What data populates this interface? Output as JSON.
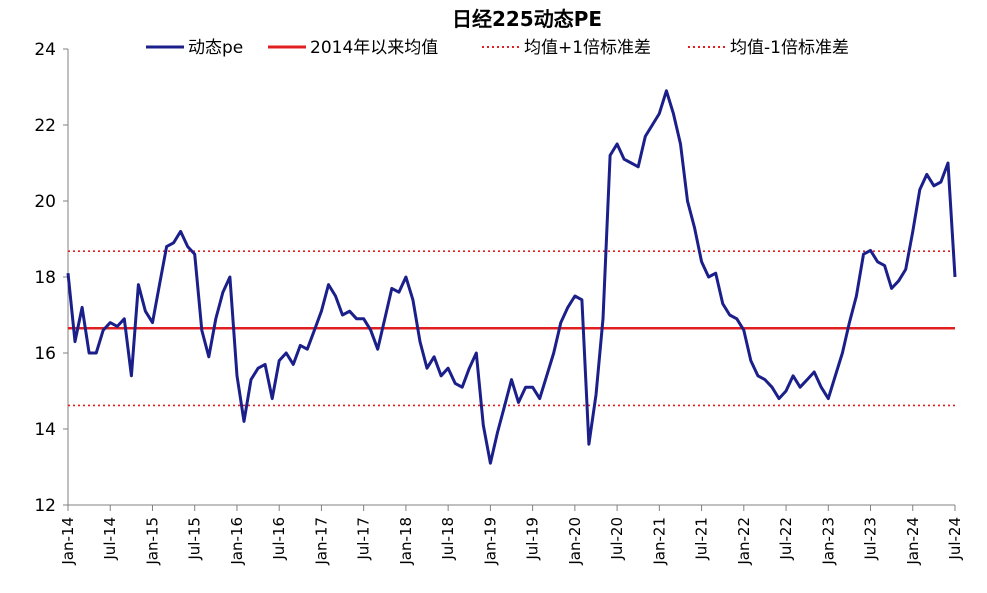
{
  "chart_data": {
    "type": "line",
    "title": "日经225动态PE",
    "xlabel": "",
    "ylabel": "",
    "ylim": [
      12,
      24
    ],
    "yticks": [
      12,
      14,
      16,
      18,
      20,
      22,
      24
    ],
    "xlim": [
      "2014-01",
      "2024-07"
    ],
    "xticks": [
      "Jan-14",
      "Jul-14",
      "Jan-15",
      "Jul-15",
      "Jan-16",
      "Jul-16",
      "Jan-17",
      "Jul-17",
      "Jan-18",
      "Jul-18",
      "Jan-19",
      "Jul-19",
      "Jan-20",
      "Jul-20",
      "Jan-21",
      "Jul-21",
      "Jan-22",
      "Jul-22",
      "Jan-23",
      "Jul-23",
      "Jan-24",
      "Jul-24"
    ],
    "grid": false,
    "legend_position": "top",
    "legend": [
      "动态pe",
      "2014年以来均值",
      "均值+1倍标准差",
      "均值-1倍标准差"
    ],
    "colors": {
      "pe": "#1b1f8a",
      "mean": "#e02020",
      "band": "#e02020",
      "axis": "#808080"
    },
    "reference_lines": {
      "mean": 16.65,
      "upper": 18.68,
      "lower": 14.62
    },
    "series": [
      {
        "name": "动态pe",
        "x": [
          "2014-01",
          "2014-02",
          "2014-03",
          "2014-04",
          "2014-05",
          "2014-06",
          "2014-07",
          "2014-08",
          "2014-09",
          "2014-10",
          "2014-11",
          "2014-12",
          "2015-01",
          "2015-02",
          "2015-03",
          "2015-04",
          "2015-05",
          "2015-06",
          "2015-07",
          "2015-08",
          "2015-09",
          "2015-10",
          "2015-11",
          "2015-12",
          "2016-01",
          "2016-02",
          "2016-03",
          "2016-04",
          "2016-05",
          "2016-06",
          "2016-07",
          "2016-08",
          "2016-09",
          "2016-10",
          "2016-11",
          "2016-12",
          "2017-01",
          "2017-02",
          "2017-03",
          "2017-04",
          "2017-05",
          "2017-06",
          "2017-07",
          "2017-08",
          "2017-09",
          "2017-10",
          "2017-11",
          "2017-12",
          "2018-01",
          "2018-02",
          "2018-03",
          "2018-04",
          "2018-05",
          "2018-06",
          "2018-07",
          "2018-08",
          "2018-09",
          "2018-10",
          "2018-11",
          "2018-12",
          "2019-01",
          "2019-02",
          "2019-03",
          "2019-04",
          "2019-05",
          "2019-06",
          "2019-07",
          "2019-08",
          "2019-09",
          "2019-10",
          "2019-11",
          "2019-12",
          "2020-01",
          "2020-02",
          "2020-03",
          "2020-04",
          "2020-05",
          "2020-06",
          "2020-07",
          "2020-08",
          "2020-09",
          "2020-10",
          "2020-11",
          "2020-12",
          "2021-01",
          "2021-02",
          "2021-03",
          "2021-04",
          "2021-05",
          "2021-06",
          "2021-07",
          "2021-08",
          "2021-09",
          "2021-10",
          "2021-11",
          "2021-12",
          "2022-01",
          "2022-02",
          "2022-03",
          "2022-04",
          "2022-05",
          "2022-06",
          "2022-07",
          "2022-08",
          "2022-09",
          "2022-10",
          "2022-11",
          "2022-12",
          "2023-01",
          "2023-02",
          "2023-03",
          "2023-04",
          "2023-05",
          "2023-06",
          "2023-07",
          "2023-08",
          "2023-09",
          "2023-10",
          "2023-11",
          "2023-12",
          "2024-01",
          "2024-02",
          "2024-03",
          "2024-04",
          "2024-05",
          "2024-06",
          "2024-07"
        ],
        "values": [
          18.1,
          16.3,
          17.2,
          16.0,
          16.0,
          16.6,
          16.8,
          16.7,
          16.9,
          15.4,
          17.8,
          17.1,
          16.8,
          17.8,
          18.8,
          18.9,
          19.2,
          18.8,
          18.6,
          16.6,
          15.9,
          16.9,
          17.6,
          18.0,
          15.4,
          14.2,
          15.3,
          15.6,
          15.7,
          14.8,
          15.8,
          16.0,
          15.7,
          16.2,
          16.1,
          16.6,
          17.1,
          17.8,
          17.5,
          17.0,
          17.1,
          16.9,
          16.9,
          16.6,
          16.1,
          16.9,
          17.7,
          17.6,
          18.0,
          17.4,
          16.3,
          15.6,
          15.9,
          15.4,
          15.6,
          15.2,
          15.1,
          15.6,
          16.0,
          14.1,
          13.1,
          13.9,
          14.6,
          15.3,
          14.7,
          15.1,
          15.1,
          14.8,
          15.4,
          16.0,
          16.8,
          17.2,
          17.5,
          17.4,
          13.6,
          14.9,
          16.9,
          21.2,
          21.5,
          21.1,
          21.0,
          20.9,
          21.7,
          22.0,
          22.3,
          22.9,
          22.3,
          21.5,
          20.0,
          19.3,
          18.4,
          18.0,
          18.1,
          17.3,
          17.0,
          16.9,
          16.6,
          15.8,
          15.4,
          15.3,
          15.1,
          14.8,
          15.0,
          15.4,
          15.1,
          15.3,
          15.5,
          15.1,
          14.8,
          15.4,
          16.0,
          16.8,
          17.5,
          18.6,
          18.7,
          18.4,
          18.3,
          17.7,
          17.9,
          18.2,
          19.2,
          20.3,
          20.7,
          20.4,
          20.5,
          21.0,
          18.0
        ]
      }
    ]
  }
}
